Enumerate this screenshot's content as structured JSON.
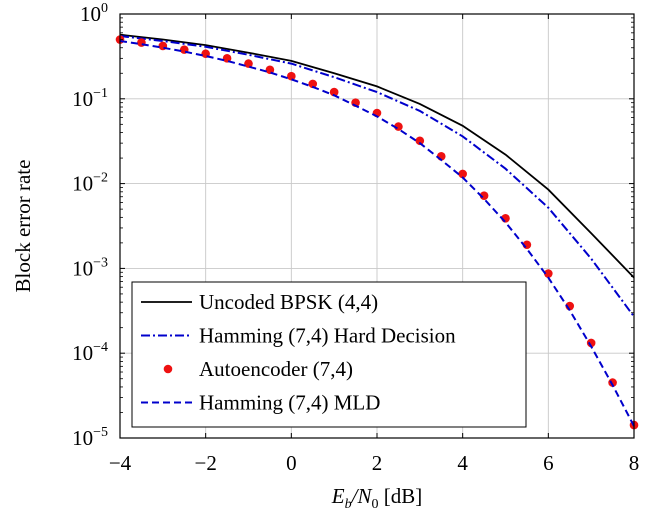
{
  "chart_data": {
    "type": "line",
    "title": "",
    "ylabel": "Block error rate",
    "xlabel": {
      "main": "E",
      "sub": "b",
      "sep": "/N",
      "sub2": "0",
      "unit": " [dB]"
    },
    "xlim": [
      -4,
      8
    ],
    "ylim": [
      1e-05,
      1
    ],
    "yscale": "log",
    "grid": true,
    "legend_position": "bottom-left",
    "x_ticks": [
      {
        "value": -4,
        "label": "−4"
      },
      {
        "value": -2,
        "label": "−2"
      },
      {
        "value": 0,
        "label": "0"
      },
      {
        "value": 2,
        "label": "2"
      },
      {
        "value": 4,
        "label": "4"
      },
      {
        "value": 6,
        "label": "6"
      },
      {
        "value": 8,
        "label": "8"
      }
    ],
    "y_ticks": [
      {
        "exp": 0,
        "base": "10",
        "sup": "0"
      },
      {
        "exp": -1,
        "base": "10",
        "sup": "−1"
      },
      {
        "exp": -2,
        "base": "10",
        "sup": "−2"
      },
      {
        "exp": -3,
        "base": "10",
        "sup": "−3"
      },
      {
        "exp": -4,
        "base": "10",
        "sup": "−4"
      },
      {
        "exp": -5,
        "base": "10",
        "sup": "−5"
      }
    ],
    "series": [
      {
        "name": "Uncoded BPSK (4,4)",
        "style": "solid",
        "color": "#000000",
        "x": [
          -4,
          -3,
          -2,
          -1,
          0,
          1,
          2,
          3,
          4,
          5,
          6,
          7,
          8
        ],
        "y": [
          0.57,
          0.5,
          0.43,
          0.35,
          0.28,
          0.2,
          0.14,
          0.087,
          0.048,
          0.022,
          0.0085,
          0.0026,
          0.00078
        ]
      },
      {
        "name": "Hamming (7,4) Hard Decision",
        "style": "dashdot",
        "color": "#0000cc",
        "x": [
          -4,
          -3,
          -2,
          -1,
          0,
          1,
          2,
          3,
          4,
          5,
          6,
          7,
          8
        ],
        "y": [
          0.55,
          0.48,
          0.41,
          0.33,
          0.26,
          0.18,
          0.12,
          0.072,
          0.036,
          0.015,
          0.0052,
          0.0013,
          0.00027
        ]
      },
      {
        "name": "Autoencoder (7,4)",
        "style": "markers",
        "color": "#ee1111",
        "x": [
          -4,
          -3.5,
          -3,
          -2.5,
          -2,
          -1.5,
          -1,
          -0.5,
          0,
          0.5,
          1,
          1.5,
          2,
          2.5,
          3,
          3.5,
          4,
          4.5,
          5,
          5.5,
          6,
          6.5,
          7,
          7.5,
          8
        ],
        "y": [
          0.5,
          0.46,
          0.42,
          0.38,
          0.34,
          0.3,
          0.26,
          0.22,
          0.185,
          0.15,
          0.12,
          0.09,
          0.068,
          0.047,
          0.032,
          0.021,
          0.013,
          0.0072,
          0.0039,
          0.0019,
          0.00087,
          0.00036,
          0.000132,
          4.5e-05,
          1.42e-05
        ]
      },
      {
        "name": "Hamming (7,4) MLD",
        "style": "dashed",
        "color": "#0000cc",
        "x": [
          -4,
          -3.5,
          -3,
          -2.5,
          -2,
          -1.5,
          -1,
          -0.5,
          0,
          0.5,
          1,
          1.5,
          2,
          2.5,
          3,
          3.5,
          4,
          4.5,
          5,
          5.5,
          6,
          6.5,
          7,
          7.5,
          8
        ],
        "y": [
          0.48,
          0.44,
          0.4,
          0.36,
          0.32,
          0.28,
          0.24,
          0.205,
          0.17,
          0.138,
          0.11,
          0.083,
          0.062,
          0.044,
          0.03,
          0.019,
          0.0118,
          0.0066,
          0.0035,
          0.0017,
          0.00078,
          0.00032,
          0.00012,
          4.2e-05,
          1.38e-05
        ]
      }
    ]
  }
}
